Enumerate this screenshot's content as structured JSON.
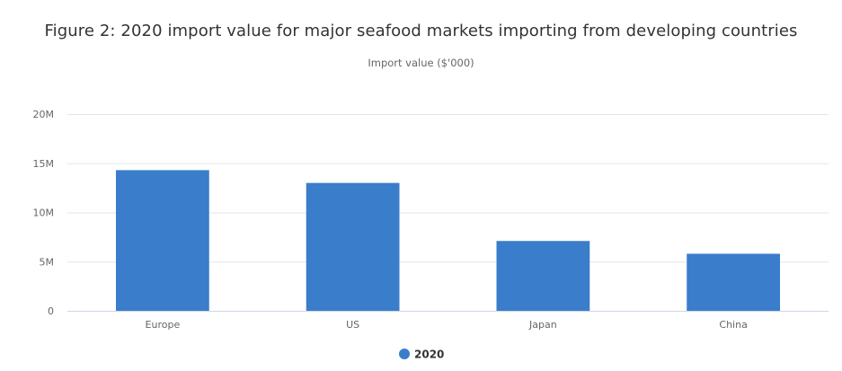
{
  "chart_data": {
    "type": "bar",
    "title": "Figure 2: 2020 import value for major seafood markets importing from developing countries",
    "subtitle": "Import value ($'000)",
    "categories": [
      "Europe",
      "US",
      "Japan",
      "China"
    ],
    "series": [
      {
        "name": "2020",
        "color": "#3a7dcb",
        "values": [
          14300000,
          13000000,
          7100000,
          5800000
        ]
      }
    ],
    "yticks": [
      {
        "value": 0,
        "label": "0"
      },
      {
        "value": 5000000,
        "label": "5M"
      },
      {
        "value": 10000000,
        "label": "10M"
      },
      {
        "value": 15000000,
        "label": "15M"
      },
      {
        "value": 20000000,
        "label": "20M"
      }
    ],
    "ylim": [
      0,
      20000000
    ],
    "grid": true,
    "legend": "bottom-center",
    "gridColor": "#e6e6e6",
    "axisColor": "#ccd6eb"
  }
}
